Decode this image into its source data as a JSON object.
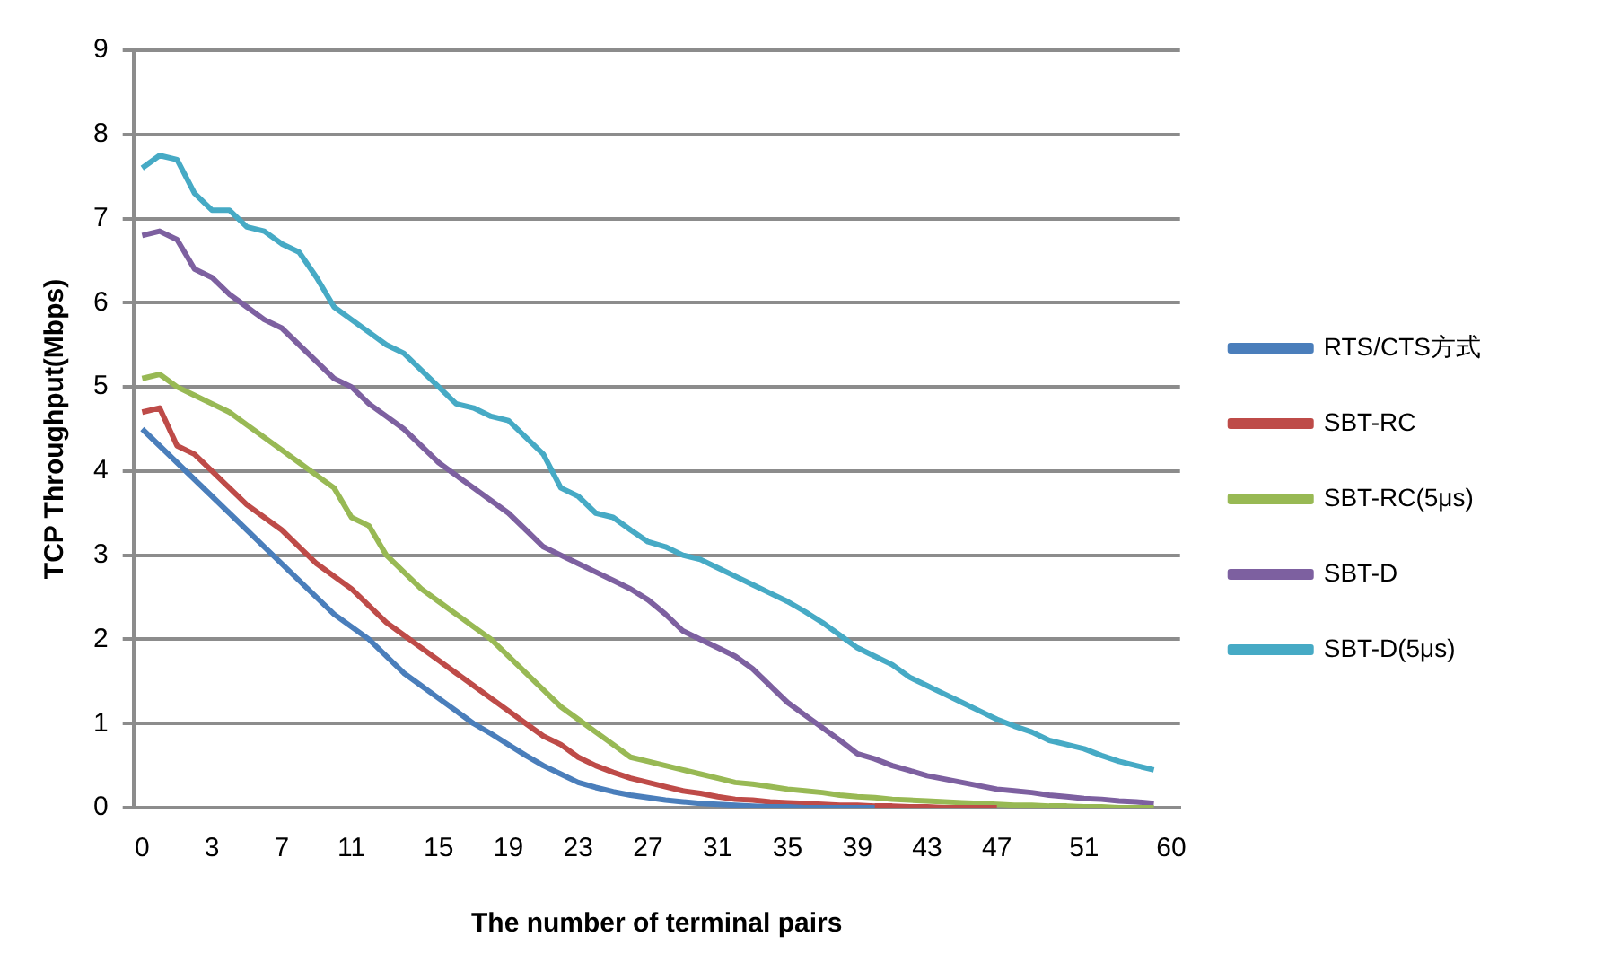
{
  "chart_data": {
    "type": "line",
    "xlabel": "The number of terminal pairs",
    "ylabel": "TCP Throughput(Mbps)",
    "categories": [
      "0",
      null,
      null,
      null,
      "3",
      null,
      null,
      null,
      "7",
      null,
      null,
      null,
      "11",
      null,
      null,
      null,
      null,
      "15",
      null,
      null,
      null,
      "19",
      null,
      null,
      null,
      "23",
      null,
      null,
      null,
      "27",
      null,
      null,
      null,
      "31",
      null,
      null,
      null,
      "35",
      null,
      null,
      null,
      "39",
      null,
      null,
      null,
      "43",
      null,
      null,
      null,
      "47",
      null,
      null,
      null,
      null,
      "51",
      null,
      null,
      null,
      null,
      "60"
    ],
    "series": [
      {
        "name": "RTS/CTS方式",
        "color": "#4a7ebb",
        "values": [
          4.5,
          4.3,
          4.1,
          3.9,
          3.7,
          3.5,
          3.3,
          3.1,
          2.9,
          2.7,
          2.5,
          2.3,
          2.15,
          2.0,
          1.8,
          1.6,
          1.45,
          1.3,
          1.15,
          1.0,
          0.88,
          0.75,
          0.62,
          0.5,
          0.4,
          0.3,
          0.24,
          0.19,
          0.15,
          0.12,
          0.09,
          0.07,
          0.05,
          0.04,
          0.03,
          0.02,
          0.01,
          0.01,
          0,
          0,
          0,
          0,
          0,
          null,
          null,
          null,
          null,
          null,
          null,
          null,
          null,
          null,
          null,
          null,
          null,
          null,
          null,
          null,
          null,
          null
        ]
      },
      {
        "name": "SBT-RC",
        "color": "#be4b48",
        "values": [
          4.7,
          4.75,
          4.3,
          4.2,
          4.0,
          3.8,
          3.6,
          3.45,
          3.3,
          3.1,
          2.9,
          2.75,
          2.6,
          2.4,
          2.2,
          2.05,
          1.9,
          1.75,
          1.6,
          1.45,
          1.3,
          1.15,
          1.0,
          0.85,
          0.75,
          0.6,
          0.5,
          0.42,
          0.35,
          0.3,
          0.25,
          0.2,
          0.17,
          0.13,
          0.1,
          0.09,
          0.07,
          0.06,
          0.05,
          0.04,
          0.03,
          0.03,
          0.02,
          0.02,
          0.01,
          0.01,
          0,
          0,
          0,
          0,
          null,
          null,
          null,
          null,
          null,
          null,
          null,
          null,
          null,
          null
        ]
      },
      {
        "name": "SBT-RC(5μs)",
        "color": "#98b954",
        "values": [
          5.1,
          5.15,
          5.0,
          4.9,
          4.8,
          4.7,
          4.55,
          4.4,
          4.25,
          4.1,
          3.95,
          3.8,
          3.45,
          3.35,
          3.0,
          2.8,
          2.6,
          2.45,
          2.3,
          2.15,
          2.0,
          1.8,
          1.6,
          1.4,
          1.2,
          1.05,
          0.9,
          0.75,
          0.6,
          0.55,
          0.5,
          0.45,
          0.4,
          0.35,
          0.3,
          0.28,
          0.25,
          0.22,
          0.2,
          0.18,
          0.15,
          0.13,
          0.12,
          0.1,
          0.09,
          0.08,
          0.07,
          0.06,
          0.05,
          0.04,
          0.03,
          0.03,
          0.02,
          0.02,
          0.01,
          0.01,
          0,
          0,
          0,
          null
        ]
      },
      {
        "name": "SBT-D",
        "color": "#7d60a0",
        "values": [
          6.8,
          6.85,
          6.75,
          6.4,
          6.3,
          6.1,
          5.95,
          5.8,
          5.7,
          5.5,
          5.3,
          5.1,
          5.0,
          4.8,
          4.65,
          4.5,
          4.3,
          4.1,
          3.95,
          3.8,
          3.65,
          3.5,
          3.3,
          3.1,
          3.0,
          2.9,
          2.8,
          2.7,
          2.6,
          2.47,
          2.3,
          2.1,
          2.0,
          1.9,
          1.8,
          1.65,
          1.45,
          1.25,
          1.1,
          0.95,
          0.8,
          0.64,
          0.58,
          0.5,
          0.44,
          0.38,
          0.34,
          0.3,
          0.26,
          0.22,
          0.2,
          0.18,
          0.15,
          0.13,
          0.11,
          0.1,
          0.08,
          0.07,
          0.05,
          null
        ]
      },
      {
        "name": "SBT-D(5μs)",
        "color": "#46aac5",
        "values": [
          7.6,
          7.75,
          7.7,
          7.3,
          7.1,
          7.1,
          6.9,
          6.85,
          6.7,
          6.6,
          6.3,
          5.95,
          5.8,
          5.65,
          5.5,
          5.4,
          5.2,
          5.0,
          4.8,
          4.75,
          4.65,
          4.6,
          4.4,
          4.2,
          3.8,
          3.7,
          3.5,
          3.45,
          3.3,
          3.16,
          3.1,
          3.0,
          2.95,
          2.85,
          2.75,
          2.65,
          2.55,
          2.45,
          2.33,
          2.2,
          2.05,
          1.9,
          1.8,
          1.7,
          1.55,
          1.45,
          1.35,
          1.25,
          1.15,
          1.05,
          0.97,
          0.9,
          0.8,
          0.75,
          0.7,
          0.62,
          0.55,
          0.5,
          0.45,
          null
        ]
      }
    ],
    "ylim": [
      0,
      9
    ],
    "yticks": [
      0,
      1,
      2,
      3,
      4,
      5,
      6,
      7,
      8,
      9
    ],
    "grid": "y",
    "legend": "right",
    "marker": "none",
    "line_style": "solid"
  }
}
